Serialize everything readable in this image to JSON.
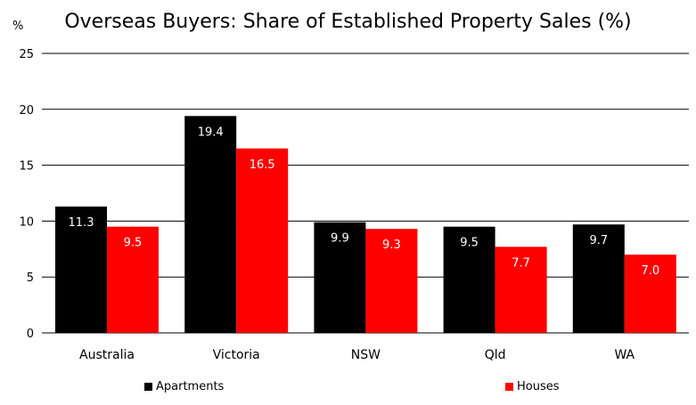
{
  "chart_data": {
    "type": "bar",
    "title": "Overseas Buyers: Share of Established Property Sales (%)",
    "ylabel": "%",
    "xlabel": "",
    "ylim": [
      0,
      25
    ],
    "yticks": [
      0,
      5,
      10,
      15,
      20,
      25
    ],
    "grid": true,
    "legend_position": "bottom",
    "categories": [
      "Australia",
      "Victoria",
      "NSW",
      "Qld",
      "WA"
    ],
    "series": [
      {
        "name": "Apartments",
        "values": [
          11.3,
          19.4,
          9.9,
          9.5,
          9.7
        ],
        "color": "#000000"
      },
      {
        "name": "Houses",
        "values": [
          9.5,
          16.5,
          9.3,
          7.7,
          7.0
        ],
        "color": "#ff0000"
      }
    ]
  }
}
